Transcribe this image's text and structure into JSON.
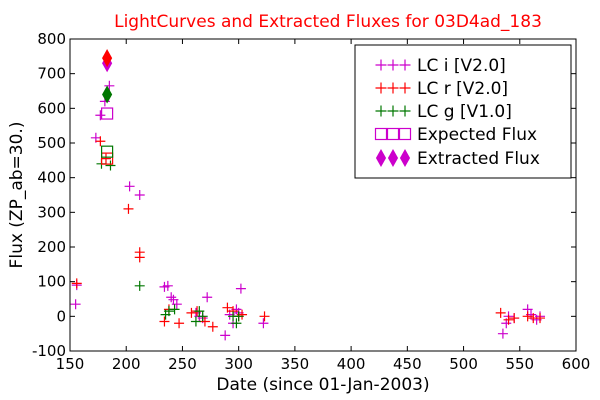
{
  "chart_data": {
    "type": "scatter",
    "title": "LightCurves and Extracted Fluxes for 03D4ad_183",
    "xlabel": "Date (since 01-Jan-2003)",
    "ylabel": "Flux (ZP_ab=30.)",
    "xlim": [
      150,
      600
    ],
    "ylim": [
      -100,
      800
    ],
    "xticks": [
      150,
      200,
      250,
      300,
      350,
      400,
      450,
      500,
      550,
      600
    ],
    "yticks": [
      -100,
      0,
      100,
      200,
      300,
      400,
      500,
      600,
      700,
      800
    ],
    "grid": false,
    "legend_position": "top-right",
    "colors": {
      "i": "#cc00cc",
      "r": "#ff0000",
      "g": "#007700",
      "title": "#ff0000"
    },
    "legend": [
      {
        "label": "LC i [V2.0]",
        "marker": "plus",
        "color": "#cc00cc"
      },
      {
        "label": "LC r [V2.0]",
        "marker": "plus",
        "color": "#ff0000"
      },
      {
        "label": "LC g [V1.0]",
        "marker": "plus",
        "color": "#007700"
      },
      {
        "label": "Expected Flux",
        "marker": "square",
        "color": "#cc00cc"
      },
      {
        "label": "Extracted Flux",
        "marker": "diamond",
        "color": "#cc00cc"
      }
    ],
    "series": [
      {
        "name": "LC i [V2.0]",
        "band": "i",
        "marker": "plus",
        "points": [
          [
            155,
            35
          ],
          [
            156,
            90
          ],
          [
            173,
            515
          ],
          [
            177,
            580
          ],
          [
            181,
            620
          ],
          [
            185,
            665
          ],
          [
            203,
            375
          ],
          [
            212,
            350
          ],
          [
            234,
            85
          ],
          [
            237,
            88
          ],
          [
            240,
            55
          ],
          [
            242,
            48
          ],
          [
            245,
            35
          ],
          [
            262,
            10
          ],
          [
            265,
            0
          ],
          [
            268,
            -5
          ],
          [
            272,
            55
          ],
          [
            288,
            -55
          ],
          [
            292,
            5
          ],
          [
            295,
            -20
          ],
          [
            298,
            20
          ],
          [
            300,
            10
          ],
          [
            302,
            80
          ],
          [
            322,
            -20
          ],
          [
            535,
            -50
          ],
          [
            538,
            -20
          ],
          [
            540,
            0
          ],
          [
            545,
            -5
          ],
          [
            557,
            20
          ],
          [
            560,
            5
          ],
          [
            565,
            -10
          ],
          [
            568,
            0
          ]
        ]
      },
      {
        "name": "LC r [V2.0]",
        "band": "r",
        "marker": "plus",
        "points": [
          [
            156,
            95
          ],
          [
            177,
            505
          ],
          [
            182,
            455
          ],
          [
            202,
            310
          ],
          [
            212,
            185
          ],
          [
            212,
            170
          ],
          [
            234,
            -15
          ],
          [
            238,
            20
          ],
          [
            247,
            -20
          ],
          [
            258,
            10
          ],
          [
            263,
            15
          ],
          [
            270,
            -15
          ],
          [
            277,
            -30
          ],
          [
            290,
            25
          ],
          [
            295,
            15
          ],
          [
            300,
            0
          ],
          [
            303,
            5
          ],
          [
            323,
            0
          ],
          [
            533,
            10
          ],
          [
            540,
            -10
          ],
          [
            545,
            -5
          ],
          [
            557,
            0
          ],
          [
            562,
            -5
          ],
          [
            568,
            -5
          ]
        ]
      },
      {
        "name": "LC g [V1.0]",
        "band": "g",
        "marker": "plus",
        "points": [
          [
            178,
            440
          ],
          [
            186,
            435
          ],
          [
            212,
            88
          ],
          [
            235,
            5
          ],
          [
            238,
            15
          ],
          [
            243,
            20
          ],
          [
            262,
            -15
          ],
          [
            265,
            15
          ],
          [
            268,
            0
          ],
          [
            295,
            0
          ],
          [
            298,
            -20
          ],
          [
            300,
            0
          ]
        ]
      },
      {
        "name": "Expected Flux",
        "marker": "square",
        "points": [
          {
            "x": 183,
            "y": 585,
            "color": "#cc00cc"
          },
          {
            "x": 183,
            "y": 455,
            "color": "#ff0000"
          },
          {
            "x": 183,
            "y": 475,
            "color": "#007700"
          }
        ]
      },
      {
        "name": "Extracted Flux",
        "marker": "diamond",
        "points": [
          {
            "x": 183,
            "y": 730,
            "color": "#cc00cc"
          },
          {
            "x": 183,
            "y": 745,
            "color": "#ff0000"
          },
          {
            "x": 183,
            "y": 640,
            "color": "#007700"
          }
        ]
      }
    ]
  }
}
